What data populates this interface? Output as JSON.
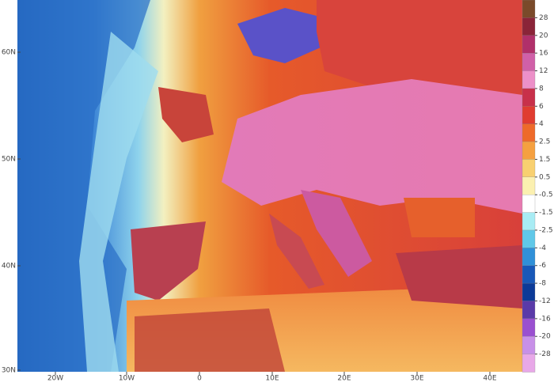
{
  "map": {
    "lat_labels": [
      "60N",
      "50N",
      "40N",
      "30N"
    ],
    "lon_labels": [
      "20W",
      "10W",
      "0",
      "10E",
      "20E",
      "30E",
      "40E"
    ],
    "colorbar": {
      "levels": [
        28,
        20,
        16,
        12,
        8,
        6,
        4,
        2.5,
        1.5,
        0.5,
        -0.5,
        -1.5,
        -2.5,
        -4,
        -6,
        -8,
        -12,
        -16,
        -20,
        -28
      ]
    }
  }
}
